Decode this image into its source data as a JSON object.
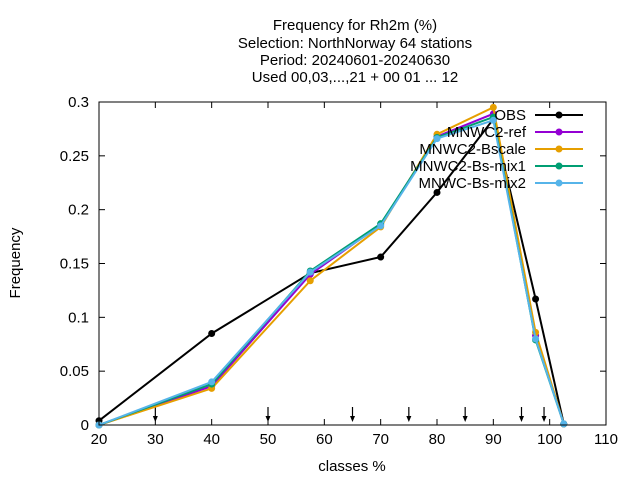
{
  "chart_data": {
    "type": "line",
    "title_lines": [
      "Frequency  for Rh2m (%)",
      "Selection: NorthNorway     64 stations",
      "Period: 20240601-20240630",
      "Used 00,03,...,21 + 00 01 ... 12"
    ],
    "xlabel": "classes %",
    "ylabel": "Frequency",
    "xlim": [
      20,
      110
    ],
    "ylim": [
      0,
      0.3
    ],
    "xticks": [
      20,
      30,
      40,
      50,
      60,
      70,
      80,
      90,
      100,
      110
    ],
    "yticks": [
      "0",
      "0.05",
      "0.1",
      "0.15",
      "0.2",
      "0.25",
      "0.3"
    ],
    "class_markers": [
      30,
      50,
      65,
      75,
      85,
      95,
      99
    ],
    "x": [
      20,
      40,
      57.5,
      70,
      80,
      90,
      97.5,
      102.5
    ],
    "series": [
      {
        "name": "OBS",
        "color": "#000000",
        "values": [
          0.004,
          0.085,
          0.141,
          0.156,
          0.216,
          0.284,
          0.117,
          0.001
        ]
      },
      {
        "name": "MNWC2-ref",
        "color": "#9400d3",
        "values": [
          0.0,
          0.036,
          0.14,
          0.186,
          0.268,
          0.289,
          0.083,
          0.001
        ]
      },
      {
        "name": "MNWC2-Bscale",
        "color": "#e69f00",
        "values": [
          0.0,
          0.034,
          0.134,
          0.184,
          0.27,
          0.295,
          0.086,
          0.001
        ]
      },
      {
        "name": "MNWC2-Bs-mix1",
        "color": "#009e73",
        "values": [
          0.0,
          0.038,
          0.143,
          0.187,
          0.267,
          0.286,
          0.079,
          0.001
        ]
      },
      {
        "name": "MNWC-Bs-mix2",
        "color": "#56b4e9",
        "values": [
          0.0,
          0.04,
          0.142,
          0.185,
          0.266,
          0.283,
          0.08,
          0.001
        ]
      }
    ]
  }
}
